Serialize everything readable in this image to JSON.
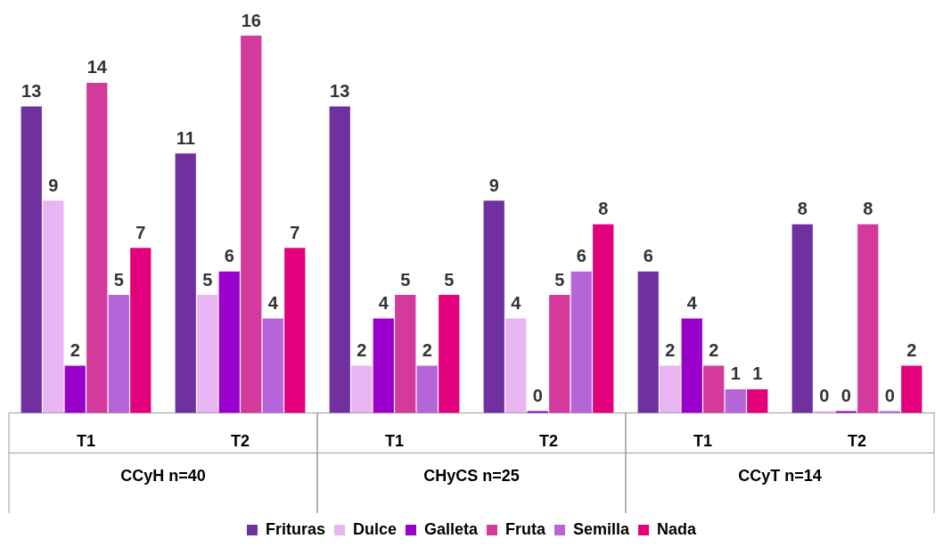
{
  "chart_data": {
    "type": "bar",
    "categories": [
      "T1",
      "T2",
      "T1",
      "T2",
      "T1",
      "T2"
    ],
    "annotations": [
      "CCyH n=40",
      "CHyCS n=25",
      "CCyT n=14"
    ],
    "series": [
      {
        "name": "Frituras",
        "color": "#7030a0",
        "values": [
          13,
          11,
          13,
          9,
          6,
          8
        ]
      },
      {
        "name": "Dulce",
        "color": "#e8b4f2",
        "values": [
          9,
          5,
          2,
          4,
          2,
          0
        ]
      },
      {
        "name": "Galleta",
        "color": "#9900cc",
        "values": [
          2,
          6,
          4,
          0,
          4,
          0
        ]
      },
      {
        "name": "Fruta",
        "color": "#d4399c",
        "values": [
          14,
          16,
          5,
          5,
          2,
          8
        ]
      },
      {
        "name": "Semilla",
        "color": "#b466d8",
        "values": [
          5,
          4,
          2,
          6,
          1,
          0
        ]
      },
      {
        "name": "Nada",
        "color": "#e2007d",
        "values": [
          7,
          7,
          5,
          8,
          1,
          2
        ]
      }
    ],
    "data_labels": true,
    "grid": false,
    "legend": "bottom"
  }
}
